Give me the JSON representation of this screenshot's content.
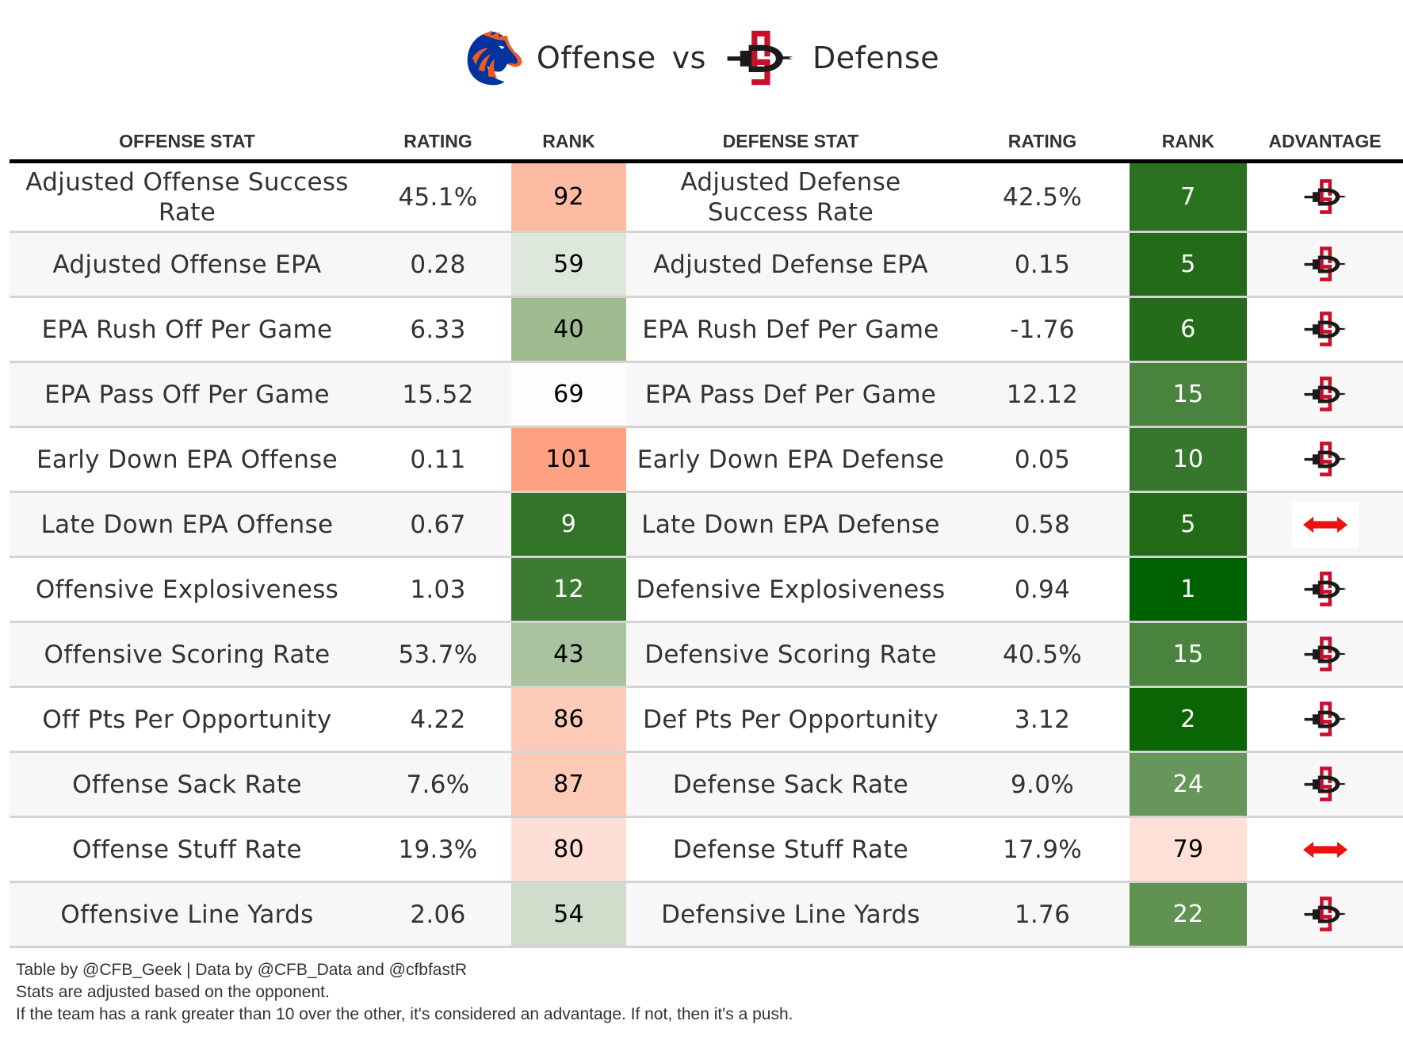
{
  "title": {
    "offense_team_logo": "boise-state-bronco-logo",
    "offense_label": "Offense",
    "vs_label": "vs",
    "defense_team_logo": "san-diego-state-sd-logo",
    "defense_label": "Defense"
  },
  "colors": {
    "boise_blue": "#0033a0",
    "boise_orange": "#f15a22",
    "sdsu_red": "#c8102e",
    "sdsu_black": "#1a1a1a",
    "push_arrow": "#ee1111"
  },
  "columns": {
    "offense_stat": "OFFENSE STAT",
    "offense_rating": "RATING",
    "offense_rank": "RANK",
    "defense_stat": "DEFENSE STAT",
    "defense_rating": "RATING",
    "defense_rank": "RANK",
    "advantage": "ADVANTAGE"
  },
  "rows": [
    {
      "off_stat": "Adjusted Offense Success Rate",
      "off_rating": "45.1%",
      "off_rank": "92",
      "off_rank_color": "#fdbba4",
      "off_rank_text": "dark",
      "def_stat": "Adjusted Defense Success Rate",
      "def_rating": "42.5%",
      "def_rank": "7",
      "def_rank_color": "#2a7220",
      "def_rank_text": "light",
      "advantage": "defense",
      "advantage_icon": "sdsu-logo-icon"
    },
    {
      "off_stat": "Adjusted Offense EPA",
      "off_rating": "0.28",
      "off_rank": "59",
      "off_rank_color": "#dde7dc",
      "off_rank_text": "dark",
      "def_stat": "Adjusted Defense EPA",
      "def_rating": "0.15",
      "def_rank": "5",
      "def_rank_color": "#236b18",
      "def_rank_text": "light",
      "advantage": "defense",
      "advantage_icon": "sdsu-logo-icon"
    },
    {
      "off_stat": "EPA Rush Off Per Game",
      "off_rating": "6.33",
      "off_rank": "40",
      "off_rank_color": "#9fbc91",
      "off_rank_text": "dark",
      "def_stat": "EPA Rush Def Per Game",
      "def_rating": "-1.76",
      "def_rank": "6",
      "def_rank_color": "#246c19",
      "def_rank_text": "light",
      "advantage": "defense",
      "advantage_icon": "sdsu-logo-icon"
    },
    {
      "off_stat": "EPA Pass Off Per Game",
      "off_rating": "15.52",
      "off_rank": "69",
      "off_rank_color": "#fffdfc",
      "off_rank_text": "dark",
      "def_stat": "EPA Pass Def Per Game",
      "def_rating": "12.12",
      "def_rank": "15",
      "def_rank_color": "#4a833d",
      "def_rank_text": "light",
      "advantage": "defense",
      "advantage_icon": "sdsu-logo-icon"
    },
    {
      "off_stat": "Early Down EPA Offense",
      "off_rating": "0.11",
      "off_rank": "101",
      "off_rank_color": "#fea183",
      "off_rank_text": "dark",
      "def_stat": "Early Down EPA Defense",
      "def_rating": "0.05",
      "def_rank": "10",
      "def_rank_color": "#36782b",
      "def_rank_text": "light",
      "advantage": "defense",
      "advantage_icon": "sdsu-logo-icon"
    },
    {
      "off_stat": "Late Down EPA Offense",
      "off_rating": "0.67",
      "off_rank": "9",
      "off_rank_color": "#317427",
      "off_rank_text": "light",
      "def_stat": "Late Down EPA Defense",
      "def_rating": "0.58",
      "def_rank": "5",
      "def_rank_color": "#236b18",
      "def_rank_text": "light",
      "advantage": "push",
      "advantage_icon": "push-arrow-icon"
    },
    {
      "off_stat": "Offensive Explosiveness",
      "off_rating": "1.03",
      "off_rank": "12",
      "off_rank_color": "#3e7b32",
      "off_rank_text": "light",
      "def_stat": "Defensive Explosiveness",
      "def_rating": "0.94",
      "def_rank": "1",
      "def_rank_color": "#006100",
      "def_rank_text": "light",
      "advantage": "defense",
      "advantage_icon": "sdsu-logo-icon"
    },
    {
      "off_stat": "Offensive Scoring Rate",
      "off_rating": "53.7%",
      "off_rank": "43",
      "off_rank_color": "#a8c39d",
      "off_rank_text": "dark",
      "def_stat": "Defensive Scoring Rate",
      "def_rating": "40.5%",
      "def_rank": "15",
      "def_rank_color": "#4a833d",
      "def_rank_text": "light",
      "advantage": "defense",
      "advantage_icon": "sdsu-logo-icon"
    },
    {
      "off_stat": "Off Pts Per Opportunity",
      "off_rating": "4.22",
      "off_rank": "86",
      "off_rank_color": "#fdcbb8",
      "off_rank_text": "dark",
      "def_stat": "Def Pts Per Opportunity",
      "def_rating": "3.12",
      "def_rank": "2",
      "def_rank_color": "#0b6505",
      "def_rank_text": "light",
      "advantage": "defense",
      "advantage_icon": "sdsu-logo-icon"
    },
    {
      "off_stat": "Offense Sack Rate",
      "off_rating": "7.6%",
      "off_rank": "87",
      "off_rank_color": "#fdcab6",
      "off_rank_text": "dark",
      "def_stat": "Defense Sack Rate",
      "def_rating": "9.0%",
      "def_rank": "24",
      "def_rank_color": "#67965b",
      "def_rank_text": "light",
      "advantage": "defense",
      "advantage_icon": "sdsu-logo-icon"
    },
    {
      "off_stat": "Offense Stuff Rate",
      "off_rating": "19.3%",
      "off_rank": "80",
      "off_rank_color": "#fedfd5",
      "off_rank_text": "dark",
      "def_stat": "Defense Stuff Rate",
      "def_rating": "17.9%",
      "def_rank": "79",
      "def_rank_color": "#fee0d7",
      "def_rank_text": "dark",
      "advantage": "push",
      "advantage_icon": "push-arrow-icon"
    },
    {
      "off_stat": "Offensive Line Yards",
      "off_rating": "2.06",
      "off_rank": "54",
      "off_rank_color": "#cfdecb",
      "off_rank_text": "dark",
      "def_stat": "Defensive Line Yards",
      "def_rating": "1.76",
      "def_rank": "22",
      "def_rank_color": "#609252",
      "def_rank_text": "light",
      "advantage": "defense",
      "advantage_icon": "sdsu-logo-icon"
    }
  ],
  "footer": {
    "line1": "Table by @CFB_Geek | Data by @CFB_Data and @cfbfastR",
    "line2": "Stats are adjusted based on the opponent.",
    "line3": "If the team has a rank greater than 10 over the other, it's considered an advantage. If not, then it's a push."
  }
}
